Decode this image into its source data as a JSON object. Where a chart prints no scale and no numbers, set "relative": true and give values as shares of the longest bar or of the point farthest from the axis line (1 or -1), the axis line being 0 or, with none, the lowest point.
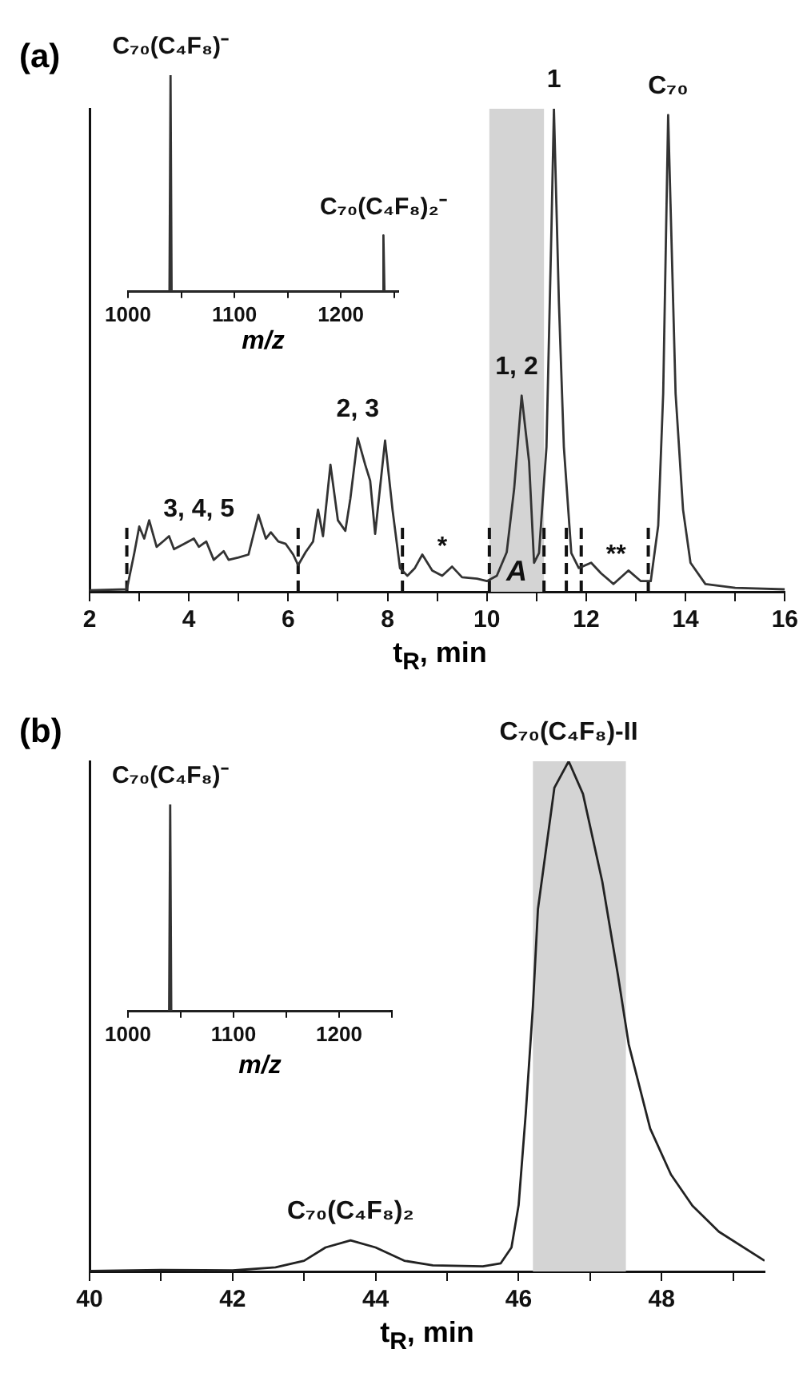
{
  "chart_data": [
    {
      "type": "line",
      "title": "(a)",
      "xlabel": "t$_{R}$, min",
      "relative": true,
      "marker": "none",
      "tick_labels": "x",
      "xlim": [
        2,
        16
      ],
      "xticks": [
        2,
        {
          "value": 3,
          "label": null
        },
        4,
        {
          "value": 5,
          "label": null
        },
        6,
        {
          "value": 7,
          "label": null
        },
        8,
        {
          "value": 9,
          "label": null
        },
        10,
        {
          "value": 11,
          "label": null
        },
        12,
        {
          "value": 13,
          "label": null
        },
        14,
        {
          "value": 15,
          "label": null
        },
        16
      ],
      "x": [
        2,
        2.75,
        2.9,
        3.0,
        3.1,
        3.2,
        3.35,
        3.5,
        3.6,
        3.7,
        3.9,
        4.1,
        4.2,
        4.35,
        4.5,
        4.7,
        4.8,
        5.0,
        5.2,
        5.4,
        5.55,
        5.65,
        5.8,
        5.95,
        6.1,
        6.2,
        6.35,
        6.5,
        6.6,
        6.7,
        6.85,
        7.0,
        7.15,
        7.25,
        7.4,
        7.55,
        7.65,
        7.75,
        7.95,
        8.1,
        8.25,
        8.4,
        8.55,
        8.7,
        8.9,
        9.1,
        9.3,
        9.5,
        9.8,
        10.0,
        10.2,
        10.4,
        10.55,
        10.7,
        10.85,
        10.95,
        11.05,
        11.2,
        11.3,
        11.35,
        11.45,
        11.55,
        11.7,
        11.85,
        12.1,
        12.3,
        12.55,
        12.85,
        13.1,
        13.3,
        13.45,
        13.55,
        13.65,
        13.8,
        13.95,
        14.1,
        14.4,
        15,
        16
      ],
      "series": [
        {
          "color": "#333333",
          "values": [
            0.003,
            0.005,
            0.08,
            0.135,
            0.11,
            0.148,
            0.093,
            0.106,
            0.115,
            0.088,
            0.099,
            0.11,
            0.093,
            0.104,
            0.066,
            0.084,
            0.066,
            0.071,
            0.077,
            0.159,
            0.11,
            0.123,
            0.104,
            0.099,
            0.077,
            0.055,
            0.082,
            0.104,
            0.17,
            0.115,
            0.263,
            0.148,
            0.126,
            0.192,
            0.318,
            0.263,
            0.23,
            0.12,
            0.313,
            0.17,
            0.049,
            0.033,
            0.049,
            0.077,
            0.044,
            0.033,
            0.052,
            0.03,
            0.027,
            0.022,
            0.033,
            0.082,
            0.214,
            0.406,
            0.269,
            0.06,
            0.08,
            0.3,
            0.75,
            1,
            0.6,
            0.3,
            0.08,
            0.049,
            0.06,
            0.038,
            0.016,
            0.044,
            0.022,
            0.022,
            0.137,
            0.41,
            0.987,
            0.41,
            0.17,
            0.06,
            0.016,
            0.008,
            0.005
          ]
        }
      ],
      "ref_lines": [
        {
          "axis": "x",
          "value": 2.75,
          "line_style": "dashed"
        },
        {
          "axis": "x",
          "value": 6.2,
          "line_style": "dashed"
        },
        {
          "axis": "x",
          "value": 8.3,
          "line_style": "dashed"
        },
        {
          "axis": "x",
          "value": 10.05,
          "line_style": "dashed"
        },
        {
          "axis": "x",
          "value": 11.15,
          "line_style": "dashed"
        },
        {
          "axis": "x",
          "value": 11.6,
          "line_style": "dashed"
        },
        {
          "axis": "x",
          "value": 11.9,
          "line_style": "dashed"
        },
        {
          "axis": "x",
          "value": 13.25,
          "line_style": "dashed"
        }
      ],
      "bands": [
        {
          "axis": "x",
          "from": 10.05,
          "to": 11.15,
          "label": "A",
          "color": "#d4d4d4"
        }
      ],
      "annotations": [
        {
          "text": "1",
          "x": 11.35,
          "y": 1
        },
        {
          "text": "C₇₀",
          "x": 13.65,
          "y": 0.987
        },
        {
          "text": "1, 2",
          "x": 10.6,
          "y": 0.406
        },
        {
          "text": "2, 3",
          "x": 7.4,
          "y": 0.318
        },
        {
          "text": "3, 4, 5",
          "x": 4.2,
          "y": 0.11
        },
        {
          "text": "*",
          "x": 9.1,
          "y": 0.033
        },
        {
          "text": "**",
          "x": 12.6,
          "y": 0.016
        }
      ]
    },
    {
      "type": "line",
      "xlabel": "m/z",
      "relative": true,
      "marker": "none",
      "tick_labels": "x",
      "xlim": [
        1000,
        1254
      ],
      "xticks": [
        1000,
        {
          "value": 1050,
          "label": null
        },
        1100,
        {
          "value": 1150,
          "label": null
        },
        1200,
        {
          "value": 1250,
          "label": null
        }
      ],
      "x": [
        1000,
        1039,
        1040,
        1041,
        1239,
        1240,
        1241,
        1254
      ],
      "series": [
        {
          "color": "#333333",
          "values": [
            0,
            0,
            1,
            0,
            0,
            0.26,
            0,
            0
          ]
        }
      ],
      "annotations": [
        {
          "text": "C₇₀(C₄F₈)⁻",
          "x": 1040,
          "y": 1
        },
        {
          "text": "C₇₀(C₄F₈)₂⁻",
          "x": 1240,
          "y": 0.26
        }
      ]
    },
    {
      "type": "line",
      "title": "(b)",
      "xlabel": "t$_{R}$, min",
      "relative": true,
      "marker": "none",
      "tick_labels": "x",
      "xlim": [
        40,
        49.44
      ],
      "xticks": [
        40,
        {
          "value": 41,
          "label": null
        },
        42,
        {
          "value": 43,
          "label": null
        },
        44,
        {
          "value": 45,
          "label": null
        },
        46,
        {
          "value": 47,
          "label": null
        },
        48,
        {
          "value": 49,
          "label": null
        }
      ],
      "x": [
        40,
        41,
        42,
        42.6,
        43.0,
        43.3,
        43.65,
        44.0,
        44.4,
        44.8,
        45.5,
        45.75,
        45.9,
        46.0,
        46.1,
        46.2,
        46.27,
        46.5,
        46.7,
        46.9,
        47.17,
        47.39,
        47.54,
        47.84,
        48.13,
        48.43,
        48.8,
        49.44
      ],
      "series": [
        {
          "color": "#222222",
          "values": [
            0.001,
            0.003,
            0.002,
            0.008,
            0.021,
            0.047,
            0.061,
            0.047,
            0.021,
            0.012,
            0.01,
            0.016,
            0.047,
            0.13,
            0.31,
            0.52,
            0.71,
            0.948,
            1,
            0.936,
            0.764,
            0.58,
            0.445,
            0.28,
            0.19,
            0.129,
            0.078,
            0.021
          ]
        }
      ],
      "bands": [
        {
          "axis": "x",
          "from": 46.2,
          "to": 47.5,
          "color": "#d4d4d4"
        }
      ],
      "annotations": [
        {
          "text": "C₇₀(C₄F₈)-II",
          "x": 46.7,
          "y": 1
        },
        {
          "text": "C₇₀(C₄F₈)₂",
          "x": 43.65,
          "y": 0.061
        }
      ]
    },
    {
      "type": "line",
      "xlabel": "m/z",
      "relative": true,
      "marker": "none",
      "tick_labels": "x",
      "xlim": [
        1000,
        1250
      ],
      "xticks": [
        1000,
        {
          "value": 1050,
          "label": null
        },
        1100,
        {
          "value": 1150,
          "label": null
        },
        1200,
        {
          "value": 1250,
          "label": null
        }
      ],
      "x": [
        1000,
        1039,
        1040,
        1041,
        1248
      ],
      "series": [
        {
          "color": "#333333",
          "values": [
            0,
            0,
            1,
            0,
            0
          ]
        }
      ],
      "annotations": [
        {
          "text": "C₇₀(C₄F₈)⁻",
          "x": 1040,
          "y": 1
        }
      ]
    }
  ]
}
